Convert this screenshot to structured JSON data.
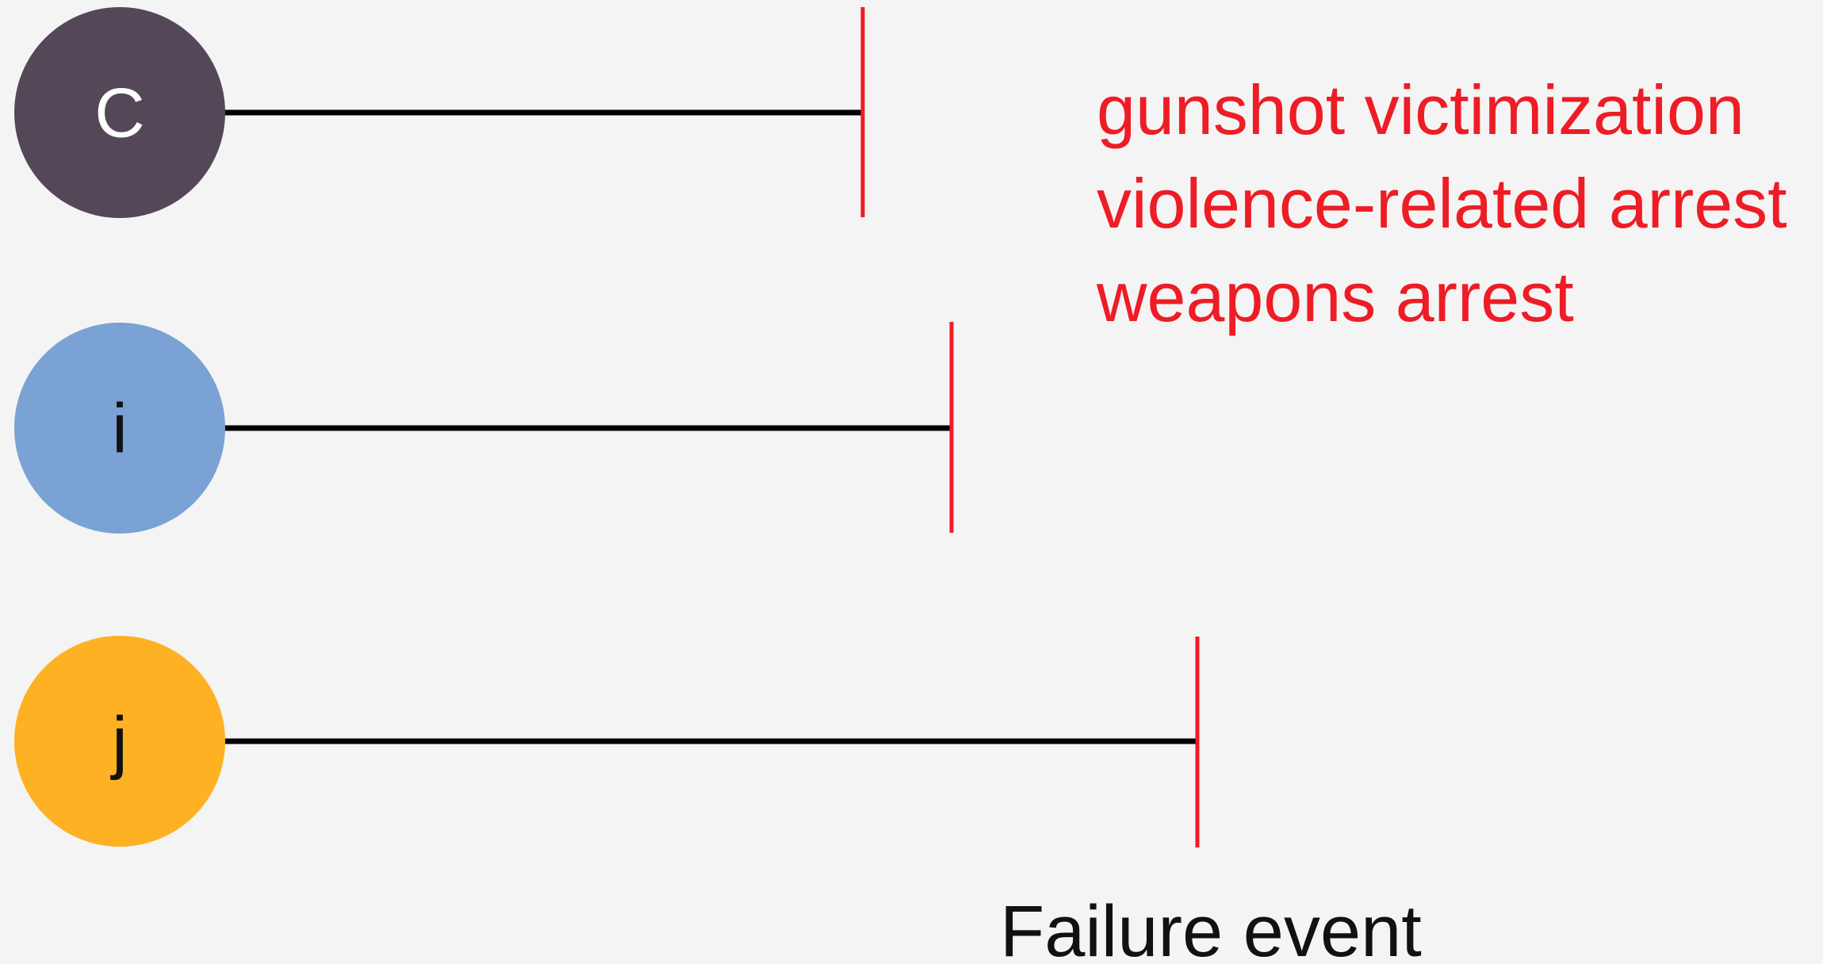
{
  "nodes": [
    {
      "label": "C"
    },
    {
      "label": "i"
    },
    {
      "label": "j"
    }
  ],
  "events": [
    "gunshot victimization",
    "violence-related arrest",
    "weapons arrest"
  ],
  "caption": "Failure event"
}
